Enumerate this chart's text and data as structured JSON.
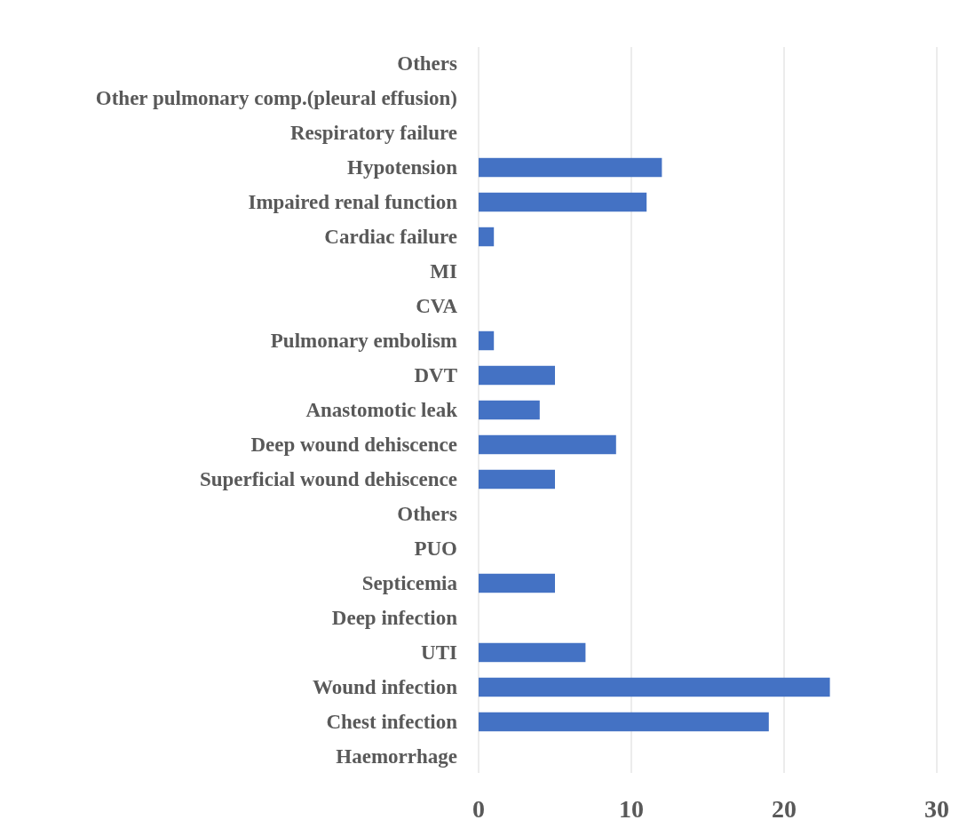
{
  "chart_data": {
    "type": "bar",
    "orientation": "horizontal",
    "categories": [
      "Others",
      "Other pulmonary comp.(pleural effusion)",
      "Respiratory failure",
      "Hypotension",
      "Impaired renal function",
      "Cardiac failure",
      "MI",
      "CVA",
      "Pulmonary embolism",
      "DVT",
      "Anastomotic leak",
      "Deep wound dehiscence",
      "Superficial wound dehiscence",
      "Others",
      "PUO",
      "Septicemia",
      "Deep infection",
      "UTI",
      "Wound infection",
      "Chest infection",
      "Haemorrhage"
    ],
    "values": [
      0,
      0,
      0,
      12,
      11,
      1,
      0,
      0,
      1,
      5,
      4,
      9,
      5,
      0,
      0,
      5,
      0,
      7,
      23,
      19,
      0
    ],
    "color": "#4472c4",
    "xlim": [
      0,
      30
    ],
    "xticks": [
      0,
      10,
      20,
      30
    ],
    "grid": "x"
  }
}
